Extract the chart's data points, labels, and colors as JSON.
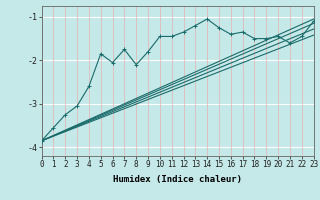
{
  "xlabel": "Humidex (Indice chaleur)",
  "xlim": [
    0,
    23
  ],
  "ylim": [
    -4.2,
    -0.75
  ],
  "yticks": [
    -4,
    -3,
    -2,
    -1
  ],
  "xticks": [
    0,
    1,
    2,
    3,
    4,
    5,
    6,
    7,
    8,
    9,
    10,
    11,
    12,
    13,
    14,
    15,
    16,
    17,
    18,
    19,
    20,
    21,
    22,
    23
  ],
  "bg_color": "#c5e8e8",
  "line_color": "#1a6b6b",
  "grid_h_color": "#ffffff",
  "grid_v_color": "#e8b0b0",
  "jagged_x": [
    0,
    1,
    2,
    3,
    4,
    5,
    6,
    7,
    8,
    9,
    10,
    11,
    12,
    13,
    14,
    15,
    16,
    17,
    18,
    19,
    20,
    21,
    22,
    23
  ],
  "jagged_y": [
    -3.85,
    -3.55,
    -3.25,
    -3.05,
    -2.6,
    -1.85,
    -2.05,
    -1.75,
    -2.1,
    -1.8,
    -1.45,
    -1.45,
    -1.35,
    -1.2,
    -1.05,
    -1.25,
    -1.4,
    -1.35,
    -1.5,
    -1.5,
    -1.45,
    -1.6,
    -1.45,
    -1.1
  ],
  "reg_lines": [
    {
      "x": [
        0,
        23
      ],
      "y": [
        -3.85,
        -1.05
      ]
    },
    {
      "x": [
        0,
        23
      ],
      "y": [
        -3.85,
        -1.15
      ]
    },
    {
      "x": [
        0,
        23
      ],
      "y": [
        -3.85,
        -1.28
      ]
    },
    {
      "x": [
        0,
        23
      ],
      "y": [
        -3.85,
        -1.42
      ]
    }
  ],
  "xlabel_fontsize": 6.5,
  "tick_fontsize": 5.5,
  "lw": 0.8
}
